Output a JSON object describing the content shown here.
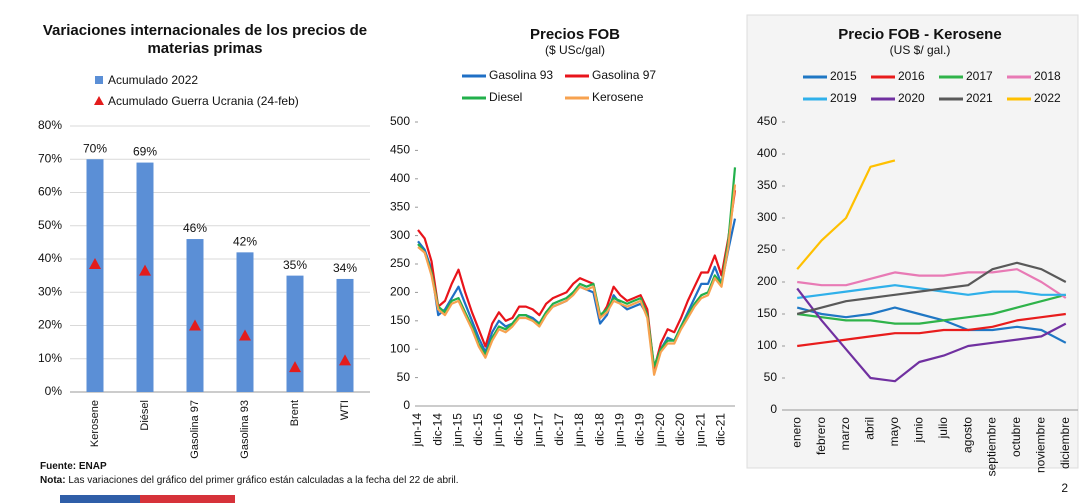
{
  "chart_data": [
    {
      "type": "bar",
      "title": "Variaciones internacionales de los precios de materias primas",
      "categories": [
        "Kerosene",
        "Diésel",
        "Gasolina 97",
        "Gasolina 93",
        "Brent",
        "WTI"
      ],
      "series": [
        {
          "name": "Acumulado 2022",
          "color": "#5b8fd6",
          "values": [
            70,
            69,
            46,
            42,
            35,
            34
          ],
          "value_labels": [
            "70%",
            "69%",
            "46%",
            "42%",
            "35%",
            "34%"
          ]
        },
        {
          "name": "Acumulado Guerra Ucrania (24-feb)",
          "color": "#e31c1c",
          "values": [
            38.5,
            36.5,
            20,
            17,
            7.5,
            9.5
          ]
        }
      ],
      "ylim": [
        0,
        80
      ],
      "yticks": [
        {
          "value": 0,
          "label": "0%"
        },
        {
          "value": 10,
          "label": "10%"
        },
        {
          "value": 20,
          "label": "20%"
        },
        {
          "value": 30,
          "label": "30%"
        },
        {
          "value": 40,
          "label": "40%"
        },
        {
          "value": 50,
          "label": "50%"
        },
        {
          "value": 60,
          "label": "60%"
        },
        {
          "value": 70,
          "label": "70%"
        },
        {
          "value": 80,
          "label": "80%"
        }
      ],
      "grid": true
    },
    {
      "type": "line",
      "title": "Precios FOB",
      "subtitle": "($ USc/gal)",
      "categories": [
        "jun-14",
        null,
        null,
        "dic-14",
        null,
        null,
        "jun-15",
        null,
        null,
        "dic-15",
        null,
        null,
        "jun-16",
        null,
        null,
        "dic-16",
        null,
        null,
        "jun-17",
        null,
        null,
        "dic-17",
        null,
        null,
        "jun-18",
        null,
        null,
        "dic-18",
        null,
        null,
        "jun-19",
        null,
        null,
        "dic-19",
        null,
        null,
        "jun-20",
        null,
        null,
        "dic-20",
        null,
        null,
        "jun-21",
        null,
        null,
        "dic-21",
        null,
        null
      ],
      "series": [
        {
          "name": "Gasolina 93",
          "color": "#1f6fc5",
          "values": [
            290,
            275,
            240,
            160,
            170,
            190,
            210,
            180,
            150,
            120,
            95,
            130,
            150,
            140,
            145,
            160,
            160,
            155,
            145,
            165,
            175,
            180,
            185,
            200,
            210,
            205,
            200,
            145,
            160,
            195,
            180,
            170,
            175,
            180,
            160,
            60,
            100,
            120,
            115,
            140,
            165,
            190,
            215,
            215,
            245,
            215,
            275,
            330
          ]
        },
        {
          "name": "Gasolina 97",
          "color": "#e8141b",
          "values": [
            310,
            295,
            255,
            175,
            185,
            215,
            240,
            200,
            165,
            135,
            105,
            145,
            165,
            150,
            155,
            175,
            175,
            170,
            160,
            180,
            190,
            195,
            200,
            215,
            225,
            220,
            215,
            155,
            175,
            210,
            195,
            185,
            190,
            195,
            170,
            65,
            110,
            135,
            130,
            155,
            185,
            210,
            235,
            235,
            265,
            230,
            295,
            380
          ]
        },
        {
          "name": "Diesel",
          "color": "#22b04b",
          "values": [
            285,
            270,
            235,
            175,
            165,
            185,
            190,
            165,
            140,
            110,
            90,
            120,
            140,
            135,
            145,
            160,
            160,
            150,
            145,
            165,
            180,
            185,
            190,
            200,
            215,
            210,
            215,
            160,
            170,
            190,
            185,
            180,
            185,
            190,
            160,
            70,
            100,
            115,
            115,
            140,
            160,
            180,
            195,
            200,
            230,
            215,
            290,
            420
          ]
        },
        {
          "name": "Kerosene",
          "color": "#f7a24f",
          "values": [
            280,
            270,
            230,
            170,
            160,
            180,
            185,
            160,
            135,
            105,
            85,
            115,
            135,
            130,
            140,
            155,
            155,
            150,
            140,
            160,
            175,
            180,
            185,
            195,
            210,
            205,
            210,
            155,
            165,
            185,
            180,
            175,
            180,
            185,
            155,
            55,
            95,
            110,
            110,
            135,
            155,
            175,
            190,
            195,
            225,
            210,
            280,
            390
          ]
        }
      ],
      "ylim": [
        0,
        500
      ],
      "yticks": [
        0,
        50,
        100,
        150,
        200,
        250,
        300,
        350,
        400,
        450,
        500
      ],
      "grid": false
    },
    {
      "type": "line",
      "title": "Precio FOB  - Kerosene",
      "subtitle": "(US $/ gal.)",
      "categories": [
        "enero",
        "febrero",
        "marzo",
        "abril",
        "mayo",
        "junio",
        "julio",
        "agosto",
        "septiembre",
        "octubre",
        "noviembre",
        "diciembre"
      ],
      "series": [
        {
          "name": "2015",
          "color": "#1f77c4",
          "values": [
            160,
            150,
            145,
            150,
            160,
            150,
            140,
            125,
            125,
            130,
            125,
            105
          ]
        },
        {
          "name": "2016",
          "color": "#e81c1c",
          "values": [
            100,
            105,
            110,
            115,
            120,
            120,
            125,
            125,
            130,
            140,
            145,
            150
          ]
        },
        {
          "name": "2017",
          "color": "#2fb34a",
          "values": [
            150,
            145,
            140,
            140,
            135,
            135,
            140,
            145,
            150,
            160,
            170,
            180
          ]
        },
        {
          "name": "2018",
          "color": "#e87ab5",
          "values": [
            200,
            195,
            195,
            205,
            215,
            210,
            210,
            215,
            215,
            220,
            200,
            175
          ]
        },
        {
          "name": "2019",
          "color": "#2fb0ea",
          "values": [
            175,
            180,
            185,
            190,
            195,
            190,
            185,
            180,
            185,
            185,
            180,
            180
          ]
        },
        {
          "name": "2020",
          "color": "#7030a0",
          "values": [
            190,
            140,
            95,
            50,
            45,
            75,
            85,
            100,
            105,
            110,
            115,
            135
          ]
        },
        {
          "name": "2021",
          "color": "#595959",
          "values": [
            150,
            160,
            170,
            175,
            180,
            185,
            190,
            195,
            220,
            230,
            220,
            200
          ]
        },
        {
          "name": "2022",
          "color": "#ffc000",
          "values": [
            220,
            265,
            300,
            380,
            390,
            null,
            null,
            null,
            null,
            null,
            null,
            null
          ]
        }
      ],
      "ylim": [
        0,
        450
      ],
      "yticks": [
        0,
        50,
        100,
        150,
        200,
        250,
        300,
        350,
        400,
        450
      ],
      "grid": false
    }
  ],
  "footer": {
    "source": "Fuente: ENAP",
    "note_label": "Nota:",
    "note": " Las variaciones del gráfico del primer gráfico están calculadas a la fecha del 22 de abril.",
    "page": "2"
  }
}
